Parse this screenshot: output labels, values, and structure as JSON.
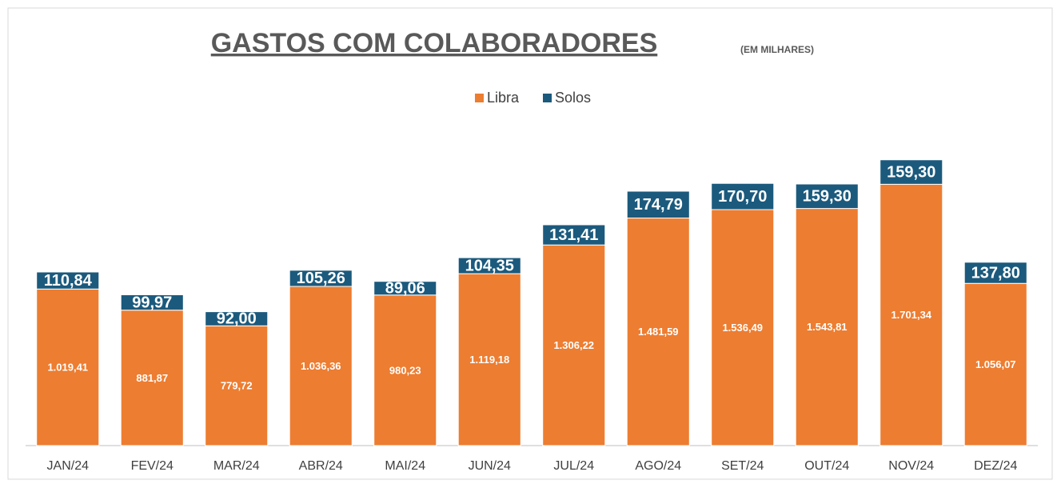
{
  "chart_data": {
    "type": "stacked_bar",
    "title": "GASTOS COM COLABORADORES",
    "subtitle": "(EM MILHARES)",
    "categories": [
      "JAN/24",
      "FEV/24",
      "MAR/24",
      "ABR/24",
      "MAI/24",
      "JUN/24",
      "JUL/24",
      "AGO/24",
      "SET/24",
      "OUT/24",
      "NOV/24",
      "DEZ/24"
    ],
    "series": [
      {
        "name": "Libra",
        "color": "#ed7d31",
        "values": [
          1019.41,
          881.87,
          779.72,
          1036.36,
          980.23,
          1119.18,
          1306.22,
          1481.59,
          1536.49,
          1543.81,
          1701.34,
          1056.07
        ],
        "value_labels": [
          "1.019,41",
          "881,87",
          "779,72",
          "1.036,36",
          "980,23",
          "1.119,18",
          "1.306,22",
          "1.481,59",
          "1.536,49",
          "1.543,81",
          "1.701,34",
          "1.056,07"
        ]
      },
      {
        "name": "Solos",
        "color": "#1b5a7d",
        "values": [
          110.84,
          99.97,
          92.0,
          105.26,
          89.06,
          104.35,
          131.41,
          174.79,
          170.7,
          159.3,
          159.3,
          137.8
        ],
        "value_labels": [
          "110,84",
          "99,97",
          "92,00",
          "105,26",
          "89,06",
          "104,35",
          "131,41",
          "174,79",
          "170,70",
          "159,30",
          "159,30",
          "137,80"
        ]
      }
    ],
    "ylim": [
      0,
      2000
    ],
    "legend": "top"
  }
}
